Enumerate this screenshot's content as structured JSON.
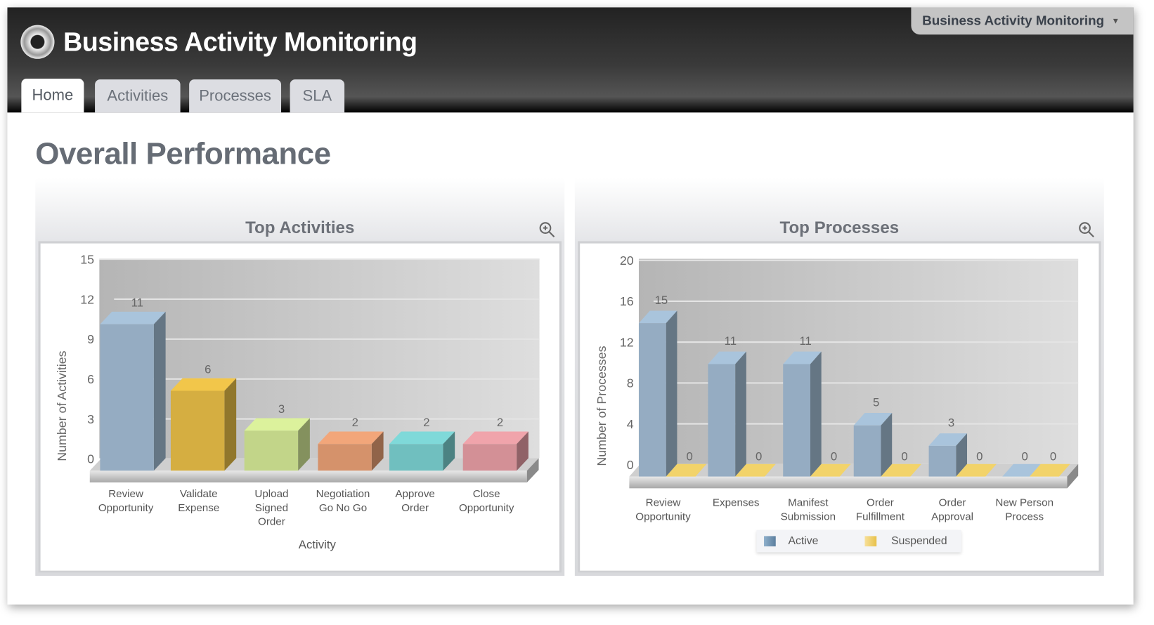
{
  "app": {
    "title": "Business Activity Monitoring",
    "switcher": "Business Activity Monitoring"
  },
  "tabs": [
    {
      "label": "Home",
      "active": true
    },
    {
      "label": "Activities"
    },
    {
      "label": "Processes"
    },
    {
      "label": "SLA"
    }
  ],
  "page_title": "Overall Performance",
  "panels": [
    {
      "title": "Top Activities",
      "zoom_icon": "zoom-in-icon"
    },
    {
      "title": "Top Processes",
      "zoom_icon": "zoom-in-icon"
    }
  ],
  "chart_data": [
    {
      "type": "bar",
      "title": "Top Activities",
      "xlabel": "Activity",
      "ylabel": "Number of Activities",
      "ylim": [
        0,
        15
      ],
      "yticks": [
        0,
        3,
        6,
        9,
        12,
        15
      ],
      "grid": true,
      "style": "3d",
      "categories": [
        [
          "Review",
          "Opportunity"
        ],
        [
          "Validate",
          "Expense"
        ],
        [
          "Upload",
          "Signed",
          "Order"
        ],
        [
          "Negotiation",
          "Go No Go"
        ],
        [
          "Approve",
          "Order"
        ],
        [
          "Close",
          "Opportunity"
        ]
      ],
      "values": [
        11,
        6,
        3,
        2,
        2,
        2
      ],
      "colors": [
        "#a9c4dc",
        "#f2c64a",
        "#dcf29c",
        "#f2a67a",
        "#7fd9d9",
        "#f0a4ab"
      ]
    },
    {
      "type": "bar",
      "title": "Top Processes",
      "xlabel": "",
      "ylabel": "Number of Processes",
      "ylim": [
        0,
        20
      ],
      "yticks": [
        0,
        4,
        8,
        12,
        16,
        20
      ],
      "grid": true,
      "style": "3d",
      "legend": "bottom",
      "categories": [
        [
          "Review",
          "Opportunity"
        ],
        [
          "Expenses"
        ],
        [
          "Manifest",
          "Submission"
        ],
        [
          "Order",
          "Fulfillment"
        ],
        [
          "Order",
          "Approval"
        ],
        [
          "New Person",
          "Process"
        ]
      ],
      "series": [
        {
          "name": "Active",
          "values": [
            15,
            11,
            11,
            5,
            3,
            0
          ],
          "color": "#a9c4dc"
        },
        {
          "name": "Suspended",
          "values": [
            0,
            0,
            0,
            0,
            0,
            0
          ],
          "color": "#f2d36a"
        }
      ]
    }
  ]
}
